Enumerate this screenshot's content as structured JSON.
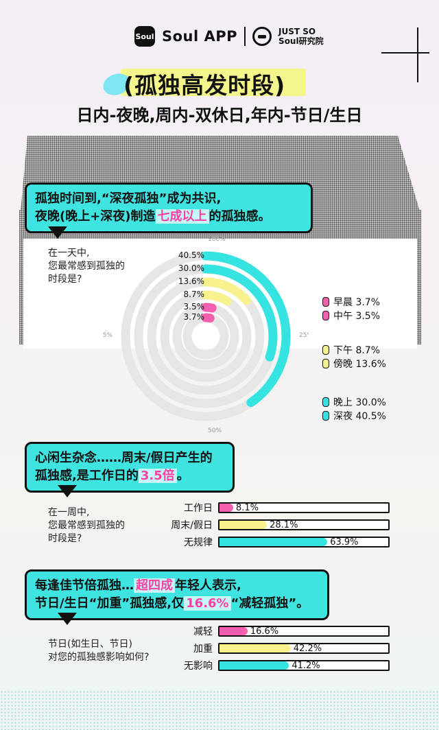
{
  "brand": {
    "logo_text": "Soul",
    "app": "Soul APP",
    "partner_line1": "JUST SO",
    "partner_line2": "Soul研究院"
  },
  "title": "(孤独高发时段)",
  "subtitle": "日内-夜晚,周内-双休日,年内-节日/生日",
  "section1": {
    "callout_line1": "孤独时间到,“深夜孤独”成为共识,",
    "callout_line2_a": "夜晚(晚上+深夜)制造",
    "callout_line2_hl": "七成以上",
    "callout_line2_b": "的孤独感。",
    "question": [
      "在一天中,",
      "您最常感到孤独的",
      "时段是?"
    ],
    "ticks": {
      "t0": "100%",
      "t25": "25%",
      "t50": "50%",
      "t75": "75%"
    },
    "legend": [
      {
        "label": "早晨 3.7%",
        "color": "#f45fb0"
      },
      {
        "label": "中午 3.5%",
        "color": "#f45fb0"
      },
      {
        "label": "下午 8.7%",
        "color": "#f7f28e"
      },
      {
        "label": "傍晚 13.6%",
        "color": "#f7f28e"
      },
      {
        "label": "晚上 30.0%",
        "color": "#35e3e0"
      },
      {
        "label": "深夜 40.5%",
        "color": "#35e3e0"
      }
    ]
  },
  "section2": {
    "callout_line1": "心闲生杂念……周末/假日产生的",
    "callout_line2_a": "孤独感,是工作日的",
    "callout_line2_hl": "3.5倍",
    "callout_line2_b": "。",
    "question": [
      "在一周中,",
      "您最常感到孤独的",
      "时段是?"
    ]
  },
  "section3": {
    "callout_line1_a": "每逢佳节倍孤独…",
    "callout_line1_hl": "超四成",
    "callout_line1_b": "年轻人表示,",
    "callout_line2_a": "节日/生日“加重”孤独感,仅",
    "callout_line2_hl": "16.6%",
    "callout_line2_b": "“减轻孤独”。",
    "question": [
      "节日(如生日、节日)",
      "对您的孤独感影响如何?"
    ]
  },
  "chart_data": [
    {
      "type": "radial-bar",
      "categories": [
        "深夜",
        "晚上",
        "傍晚",
        "下午",
        "中午",
        "早晨"
      ],
      "values": [
        40.5,
        30.0,
        13.6,
        8.7,
        3.5,
        3.7
      ],
      "value_labels": [
        "40.5%",
        "30.0%",
        "13.6%",
        "8.7%",
        "3.5%",
        "3.7%"
      ],
      "colors": [
        "#35e3e0",
        "#35e3e0",
        "#f7f28e",
        "#f7f28e",
        "#f45fb0",
        "#f45fb0"
      ],
      "ylim": [
        0,
        100
      ]
    },
    {
      "type": "bar",
      "orientation": "horizontal",
      "categories": [
        "工作日",
        "周末/假日",
        "无规律"
      ],
      "values": [
        8.1,
        28.1,
        63.9
      ],
      "value_labels": [
        "8.1%",
        "28.1%",
        "63.9%"
      ],
      "colors": [
        "#f45fb0",
        "#f7f28e",
        "#35e3e0"
      ],
      "xlim": [
        0,
        100
      ]
    },
    {
      "type": "bar",
      "orientation": "horizontal",
      "categories": [
        "减轻",
        "加重",
        "无影响"
      ],
      "values": [
        16.6,
        42.2,
        41.2
      ],
      "value_labels": [
        "16.6%",
        "42.2%",
        "41.2%"
      ],
      "colors": [
        "#f45fb0",
        "#f7f28e",
        "#35e3e0"
      ],
      "xlim": [
        0,
        100
      ]
    }
  ]
}
